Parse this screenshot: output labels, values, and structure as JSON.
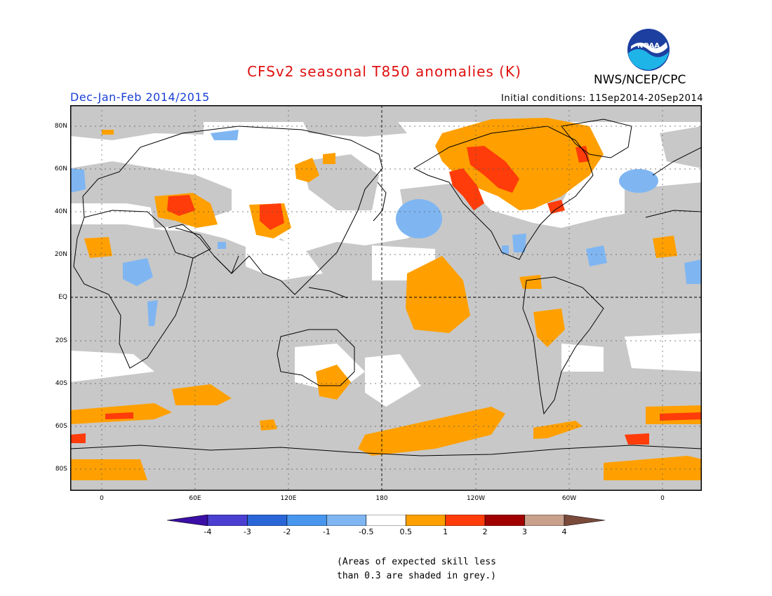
{
  "title": "CFSv2 seasonal T850 anomalies (K)",
  "organization": "NWS/NCEP/CPC",
  "logo_text": "NOAA",
  "season": "Dec-Jan-Feb 2014/2015",
  "initial_conditions": "Initial conditions: 11Sep2014-20Sep2014",
  "longitude_ticks": [
    "0",
    "60E",
    "120E",
    "180",
    "120W",
    "60W",
    "0"
  ],
  "latitude_ticks": [
    "80N",
    "60N",
    "40N",
    "20N",
    "EQ",
    "20S",
    "40S",
    "60S",
    "80S"
  ],
  "colorbar": {
    "labels": [
      "-4",
      "-3",
      "-2",
      "-1",
      "-0.5",
      "0.5",
      "1",
      "2",
      "3",
      "4"
    ],
    "colors": [
      "#3b0fa6",
      "#4a3fd0",
      "#2a66d8",
      "#4896ee",
      "#7fb6f2",
      "#ffffff",
      "#ffa000",
      "#ff3c0a",
      "#a00000",
      "#c8a08c",
      "#7a4a3a"
    ]
  },
  "skill_mask_color": "#c8c8c8",
  "note_lines": [
    "(Areas of expected skill less",
    "than 0.3 are shaded in grey.)"
  ]
}
